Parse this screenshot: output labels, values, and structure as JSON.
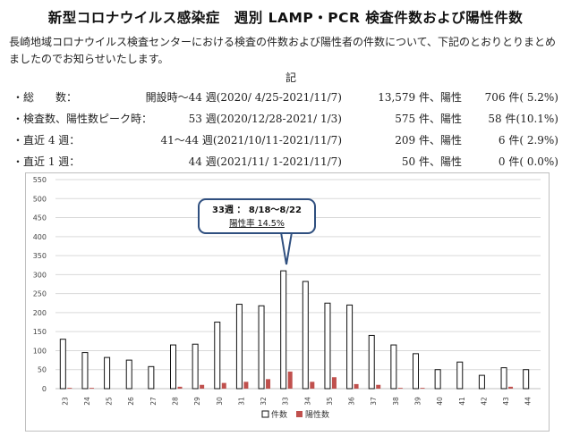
{
  "title": "新型コロナウイルス感染症　週別 LAMP・PCR 検査件数および陽性件数",
  "intro": "長崎地域コロナウイルス検査センターにおける検査の件数および陽性者の件数について、下記のとおりとりまとめましたのでお知らせいたします。",
  "ki": "記",
  "stats": [
    {
      "label": "・総　　数：",
      "period": "開設時～44 週(2020/ 4/25-2021/11/7)",
      "count": "13,579 件、陽性",
      "positive": "706 件( 5.2%)"
    },
    {
      "label": "・検査数、陽性数ピーク時：",
      "period": "53 週(2020/12/28-2021/ 1/3)",
      "count": "575 件、陽性",
      "positive": "58 件(10.1%)"
    },
    {
      "label": "・直近 4 週：",
      "period": "41～44 週(2021/10/11-2021/11/7)",
      "count": "209 件、陽性",
      "positive": "6 件( 2.9%)"
    },
    {
      "label": "・直近 1 週：",
      "period": "44 週(2021/11/ 1-2021/11/7)",
      "count": "50 件、陽性",
      "positive": "0 件( 0.0%)"
    }
  ],
  "callout": {
    "line1": "33週 ： 8/18～8/22",
    "line2": "陽性率 14.5%"
  },
  "colors": {
    "tests_fill": "#ffffff",
    "tests_stroke": "#111111",
    "positive": "#c0504d",
    "grid": "#d9d9d9",
    "callout_border": "#2f4f7f"
  },
  "chart_data": {
    "type": "bar",
    "categories": [
      "23",
      "24",
      "25",
      "26",
      "27",
      "28",
      "29",
      "30",
      "31",
      "32",
      "33",
      "34",
      "35",
      "36",
      "37",
      "38",
      "39",
      "40",
      "41",
      "42",
      "43",
      "44"
    ],
    "series": [
      {
        "name": "件数",
        "values": [
          130,
          95,
          82,
          75,
          58,
          115,
          117,
          175,
          222,
          218,
          310,
          282,
          225,
          220,
          140,
          115,
          92,
          50,
          70,
          35,
          55,
          50
        ]
      },
      {
        "name": "陽性数",
        "values": [
          2,
          2,
          0,
          0,
          0,
          5,
          10,
          15,
          18,
          25,
          45,
          18,
          30,
          12,
          10,
          2,
          2,
          0,
          0,
          0,
          5,
          0
        ]
      }
    ],
    "yticks": [
      0,
      50,
      100,
      150,
      200,
      250,
      300,
      350,
      400,
      450,
      500,
      550
    ],
    "ylim": [
      0,
      550
    ],
    "grid": true,
    "legend": "bottom"
  }
}
